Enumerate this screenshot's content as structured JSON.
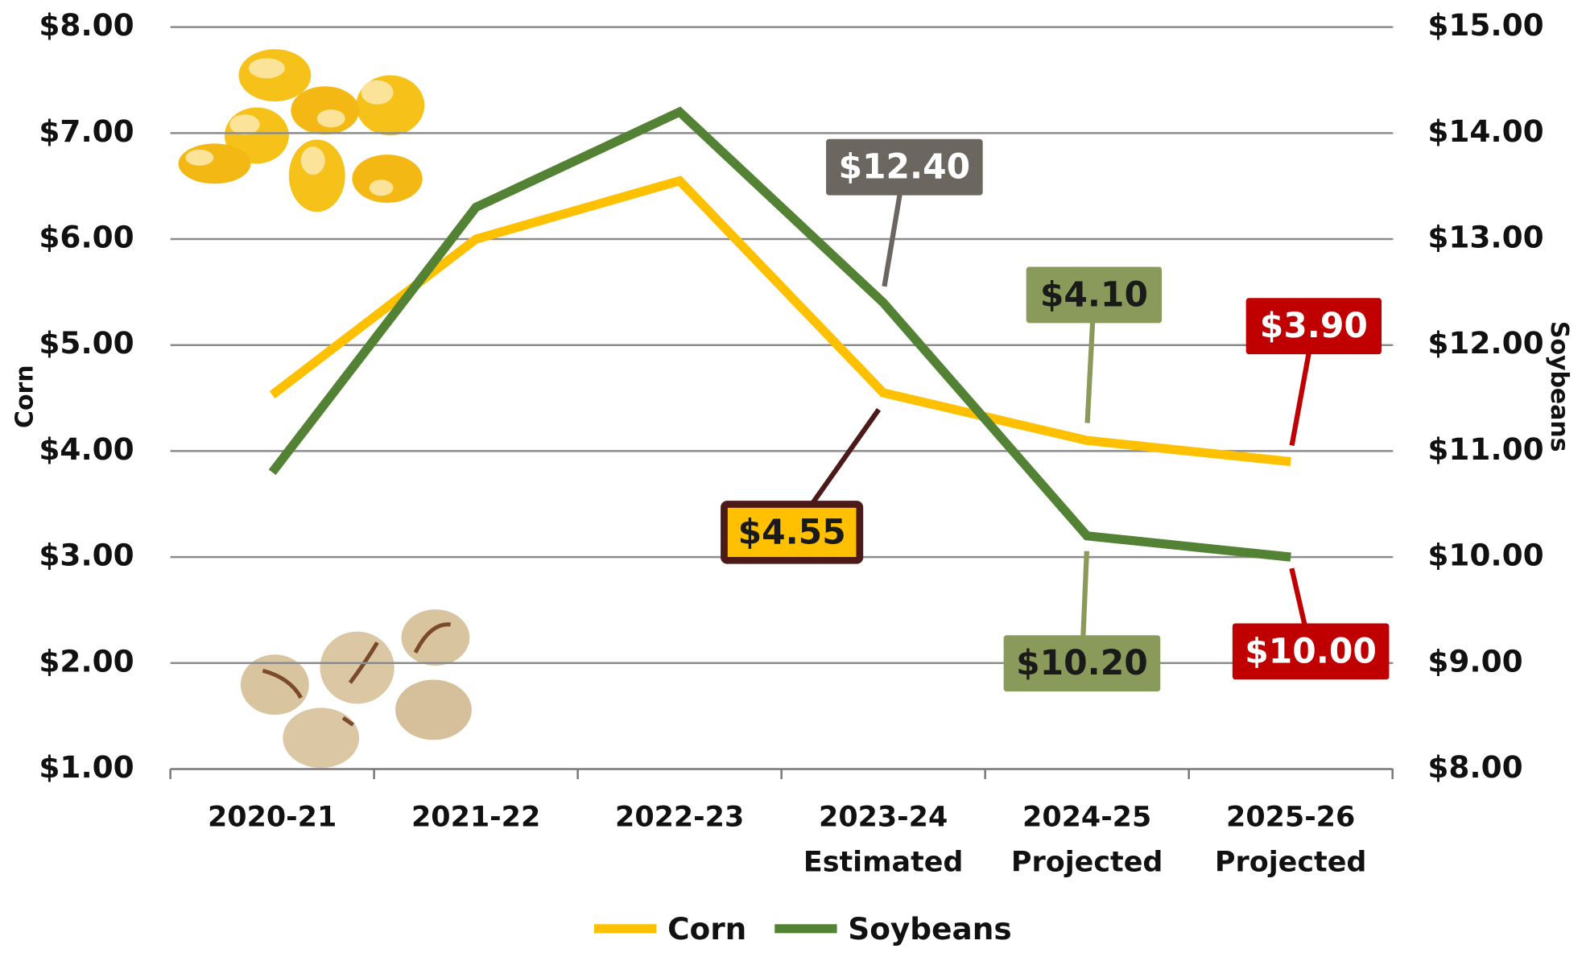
{
  "chart_data": {
    "type": "line",
    "categories": [
      "2020-21",
      "2021-22",
      "2022-23",
      "2023-24 Estimated",
      "2024-25 Projected",
      "2025-26 Projected"
    ],
    "ylabel": "Corn",
    "y2label": "Soybeans",
    "ylim": [
      1,
      8
    ],
    "yticks": [
      {
        "value": 1,
        "label": "$1.00"
      },
      {
        "value": 2,
        "label": "$2.00"
      },
      {
        "value": 3,
        "label": "$3.00"
      },
      {
        "value": 4,
        "label": "$4.00"
      },
      {
        "value": 5,
        "label": "$5.00"
      },
      {
        "value": 6,
        "label": "$6.00"
      },
      {
        "value": 7,
        "label": "$7.00"
      },
      {
        "value": 8,
        "label": "$8.00"
      }
    ],
    "y2lim": [
      8,
      15
    ],
    "y2ticks": [
      {
        "value": 8,
        "label": "$8.00"
      },
      {
        "value": 9,
        "label": "$9.00"
      },
      {
        "value": 10,
        "label": "$10.00"
      },
      {
        "value": 11,
        "label": "$11.00"
      },
      {
        "value": 12,
        "label": "$12.00"
      },
      {
        "value": 13,
        "label": "$13.00"
      },
      {
        "value": 14,
        "label": "$14.00"
      },
      {
        "value": 15,
        "label": "$15.00"
      }
    ],
    "grid": true,
    "legend": "bottom",
    "series": [
      {
        "name": "Corn",
        "color": "#ffc000",
        "values": [
          4.53,
          6.0,
          6.55,
          4.55,
          4.1,
          3.9
        ],
        "value_labels": [
          null,
          null,
          null,
          "$4.55",
          "$4.10",
          "$3.90"
        ],
        "label_colors": [
          null,
          null,
          null,
          "#ffc000",
          "#8a9a5b",
          "#c00000"
        ]
      },
      {
        "name": "Soybeans",
        "color": "#548235",
        "axis": "y2",
        "values": [
          10.8,
          13.3,
          14.2,
          12.4,
          10.2,
          10.0
        ],
        "value_labels": [
          null,
          null,
          null,
          "$12.40",
          "$10.20",
          "$10.00"
        ],
        "label_colors": [
          null,
          null,
          null,
          "#6b6660",
          "#8a9a5b",
          "#c00000"
        ]
      }
    ]
  }
}
